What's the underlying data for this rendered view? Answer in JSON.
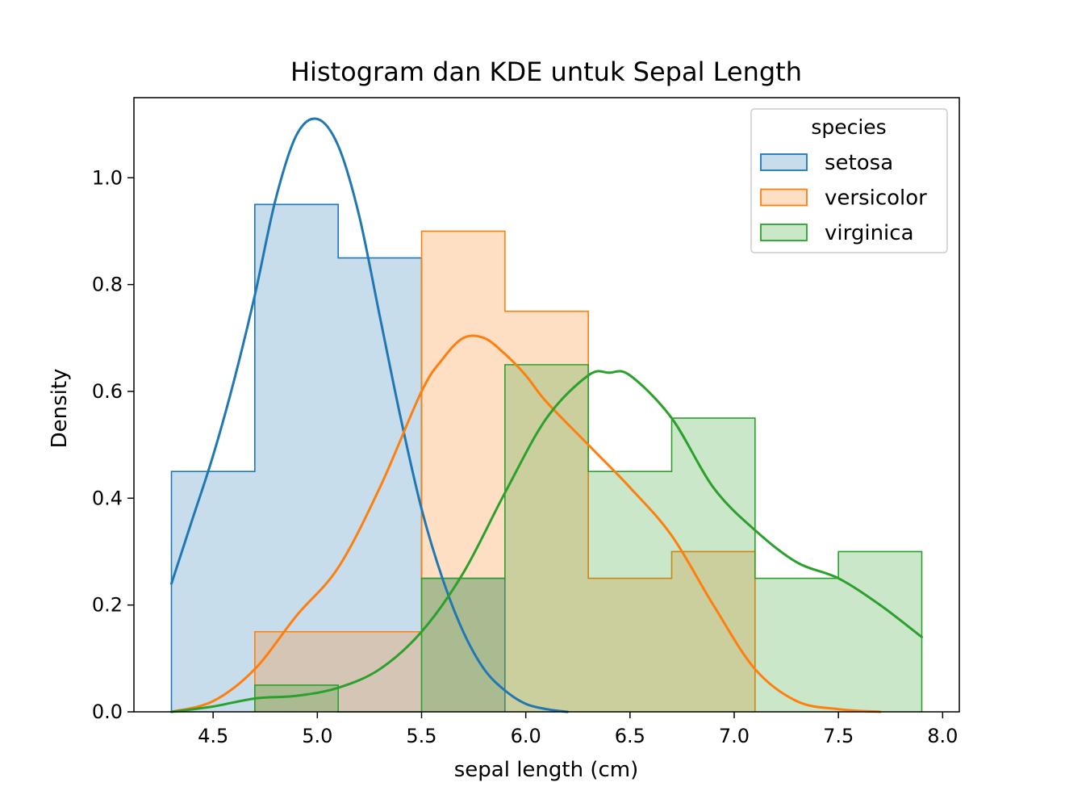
{
  "chart_data": {
    "type": "histogram",
    "title": "Histogram dan KDE untuk Sepal Length",
    "xlabel": "sepal length (cm)",
    "ylabel": "Density",
    "xlim": [
      4.12,
      8.08
    ],
    "ylim": [
      0.0,
      1.15
    ],
    "xticks": [
      4.5,
      5.0,
      5.5,
      6.0,
      6.5,
      7.0,
      7.5,
      8.0
    ],
    "xtick_labels": [
      "4.5",
      "5.0",
      "5.5",
      "6.0",
      "6.5",
      "7.0",
      "7.5",
      "8.0"
    ],
    "yticks": [
      0.0,
      0.2,
      0.4,
      0.6,
      0.8,
      1.0
    ],
    "ytick_labels": [
      "0.0",
      "0.2",
      "0.4",
      "0.6",
      "0.8",
      "1.0"
    ],
    "grid": false,
    "legend": {
      "title": "species",
      "placement": "top-right",
      "entries": [
        "setosa",
        "versicolor",
        "virginica"
      ]
    },
    "bin_edges": [
      4.3,
      4.7,
      5.1,
      5.5,
      5.9,
      6.3,
      6.7,
      7.1,
      7.5,
      7.9
    ],
    "series": [
      {
        "name": "setosa",
        "color": "#1f77b4",
        "densities": [
          0.45,
          0.95,
          0.85,
          0.25,
          0.0,
          0.0,
          0.0,
          0.0,
          0.0
        ],
        "kde": {
          "x": [
            4.3,
            4.4,
            4.5,
            4.6,
            4.7,
            4.8,
            4.9,
            5.0,
            5.1,
            5.2,
            5.3,
            5.4,
            5.5,
            5.6,
            5.7,
            5.8,
            5.9,
            6.0,
            6.1,
            6.2
          ],
          "y": [
            0.24,
            0.36,
            0.48,
            0.62,
            0.78,
            0.96,
            1.08,
            1.11,
            1.06,
            0.93,
            0.74,
            0.55,
            0.38,
            0.25,
            0.15,
            0.08,
            0.04,
            0.015,
            0.005,
            0.0
          ]
        }
      },
      {
        "name": "versicolor",
        "color": "#ff7f0e",
        "densities": [
          0.0,
          0.15,
          0.15,
          0.9,
          0.75,
          0.25,
          0.3,
          0.0,
          0.0
        ],
        "kde": {
          "x": [
            4.3,
            4.5,
            4.7,
            4.9,
            5.1,
            5.3,
            5.5,
            5.6,
            5.7,
            5.8,
            5.9,
            6.0,
            6.1,
            6.3,
            6.5,
            6.7,
            6.9,
            7.1,
            7.3,
            7.5,
            7.7
          ],
          "y": [
            0.0,
            0.02,
            0.08,
            0.18,
            0.27,
            0.42,
            0.6,
            0.66,
            0.7,
            0.7,
            0.67,
            0.63,
            0.58,
            0.5,
            0.42,
            0.33,
            0.2,
            0.08,
            0.02,
            0.005,
            0.0
          ]
        }
      },
      {
        "name": "virginica",
        "color": "#2ca02c",
        "densities": [
          0.0,
          0.05,
          0.0,
          0.25,
          0.65,
          0.45,
          0.55,
          0.25,
          0.3
        ],
        "kde": {
          "x": [
            4.3,
            4.5,
            4.7,
            4.9,
            5.1,
            5.3,
            5.5,
            5.7,
            5.9,
            6.1,
            6.3,
            6.4,
            6.5,
            6.7,
            6.9,
            7.1,
            7.3,
            7.5,
            7.7,
            7.9
          ],
          "y": [
            0.0,
            0.01,
            0.025,
            0.03,
            0.045,
            0.08,
            0.15,
            0.26,
            0.41,
            0.55,
            0.63,
            0.635,
            0.63,
            0.55,
            0.42,
            0.34,
            0.28,
            0.25,
            0.2,
            0.14
          ]
        }
      }
    ]
  }
}
